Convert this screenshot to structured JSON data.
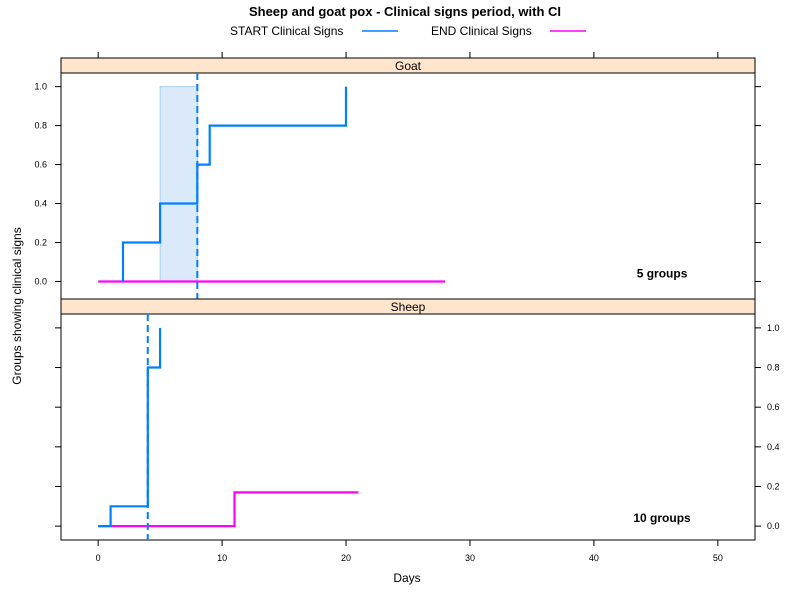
{
  "chart_data": {
    "type": "line",
    "title": "Sheep and goat pox - Clinical signs period, with CI",
    "xlabel": "Days",
    "ylabel": "Groups showing clinical signs",
    "xlim": [
      -3,
      53
    ],
    "x_ticks": [
      "0",
      "10",
      "20",
      "30",
      "40",
      "50"
    ],
    "y_ticks": [
      "0.0",
      "0.2",
      "0.4",
      "0.6",
      "0.8",
      "1.0"
    ],
    "legend": {
      "position": "top",
      "entries": [
        {
          "label": "START Clinical Signs",
          "color": "#0080ff"
        },
        {
          "label": "END Clinical Signs",
          "color": "#ff00ff"
        }
      ]
    },
    "panels": [
      {
        "name": "Goat",
        "ylim": [
          -0.09,
          1.07
        ],
        "annotation": "5 groups",
        "ci_band": {
          "x0": 5,
          "x1": 8,
          "y0": 0,
          "y1": 1.0
        },
        "median_line": {
          "x": 8,
          "series": "START Clinical Signs"
        },
        "series": [
          {
            "name": "START Clinical Signs",
            "color": "#0080ff",
            "steps": [
              [
                2,
                0
              ],
              [
                2,
                0.2
              ],
              [
                5,
                0.2
              ],
              [
                5,
                0.4
              ],
              [
                8,
                0.4
              ],
              [
                8,
                0.6
              ],
              [
                9,
                0.6
              ],
              [
                9,
                0.8
              ],
              [
                20,
                0.8
              ],
              [
                20,
                1.0
              ]
            ]
          },
          {
            "name": "END Clinical Signs",
            "color": "#ff00ff",
            "steps": [
              [
                0,
                0
              ],
              [
                28,
                0
              ]
            ]
          }
        ]
      },
      {
        "name": "Sheep",
        "ylim": [
          -0.07,
          1.07
        ],
        "annotation": "10 groups",
        "median_line": {
          "x": 4,
          "series": "START Clinical Signs"
        },
        "series": [
          {
            "name": "START Clinical Signs",
            "color": "#0080ff",
            "steps": [
              [
                0,
                0
              ],
              [
                1,
                0
              ],
              [
                1,
                0.1
              ],
              [
                4,
                0.1
              ],
              [
                4,
                0.8
              ],
              [
                5,
                0.8
              ],
              [
                5,
                1.0
              ]
            ]
          },
          {
            "name": "END Clinical Signs",
            "color": "#ff00ff",
            "steps": [
              [
                0,
                0
              ],
              [
                11,
                0
              ],
              [
                11,
                0.17
              ],
              [
                21,
                0.17
              ]
            ]
          }
        ]
      }
    ]
  }
}
